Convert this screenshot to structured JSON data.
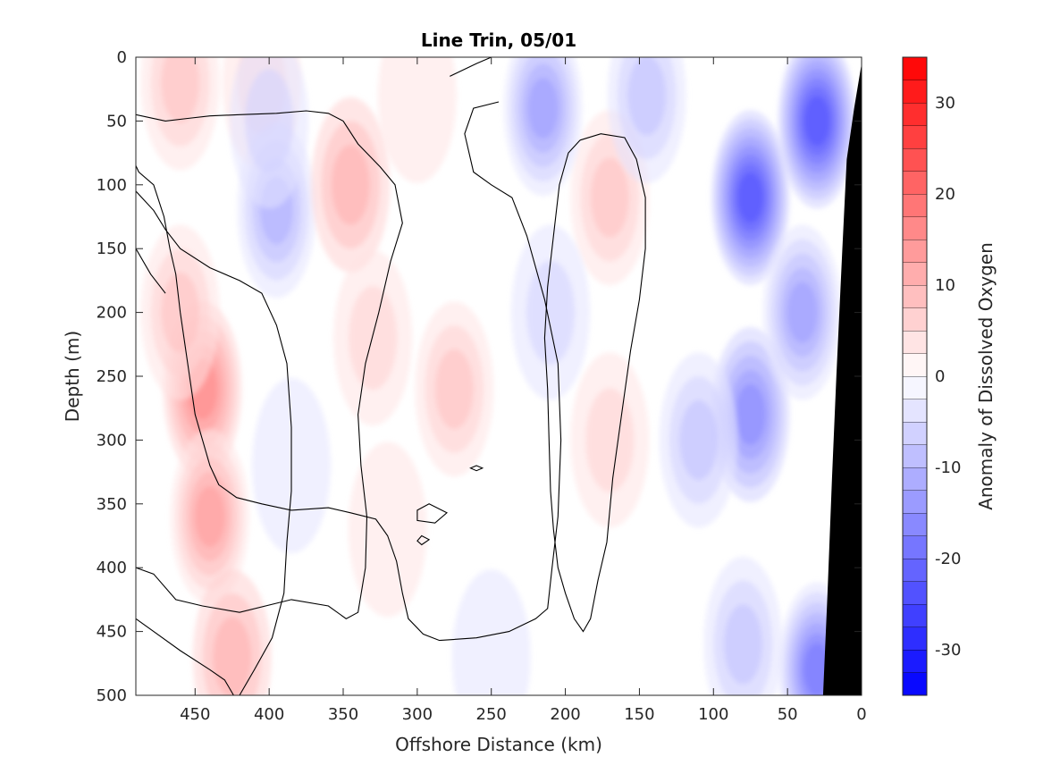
{
  "chart_data": {
    "type": "heatmap",
    "subtype": "filled-contour",
    "title": "Line Trin, 05/01",
    "xlabel": "Offshore Distance (km)",
    "ylabel": "Depth (m)",
    "colorbar_label": "Anomaly of Dissolved Oxygen",
    "xlim": [
      490,
      0
    ],
    "ylim": [
      0,
      500
    ],
    "x_reversed": true,
    "y_reversed": true,
    "x_ticks": [
      450,
      400,
      350,
      300,
      250,
      200,
      150,
      100,
      50,
      0
    ],
    "y_ticks": [
      0,
      50,
      100,
      150,
      200,
      250,
      300,
      350,
      400,
      450,
      500
    ],
    "colorbar_range": [
      -35,
      35
    ],
    "colorbar_ticks": [
      -30,
      -20,
      -10,
      0,
      10,
      20,
      30
    ],
    "colorbar_levels": 28,
    "colormap": "blue-white-red",
    "colors": {
      "negative": "#0000ff",
      "zero": "#ffffff",
      "positive": "#ff0000",
      "bathymetry": "#000000"
    },
    "zero_contour": "black line",
    "anomaly_features": [
      {
        "x": 460,
        "z": 20,
        "value": 8
      },
      {
        "x": 405,
        "z": 20,
        "value": 7
      },
      {
        "x": 445,
        "z": 260,
        "value": 15
      },
      {
        "x": 440,
        "z": 360,
        "value": 14
      },
      {
        "x": 460,
        "z": 200,
        "value": 9
      },
      {
        "x": 425,
        "z": 470,
        "value": 10
      },
      {
        "x": 395,
        "z": 120,
        "value": -12
      },
      {
        "x": 400,
        "z": 50,
        "value": -6
      },
      {
        "x": 385,
        "z": 320,
        "value": -3
      },
      {
        "x": 345,
        "z": 100,
        "value": 10
      },
      {
        "x": 330,
        "z": 220,
        "value": 7
      },
      {
        "x": 275,
        "z": 260,
        "value": 9
      },
      {
        "x": 320,
        "z": 370,
        "value": 4
      },
      {
        "x": 300,
        "z": 30,
        "value": 4
      },
      {
        "x": 170,
        "z": 110,
        "value": 8
      },
      {
        "x": 170,
        "z": 300,
        "value": 5
      },
      {
        "x": 215,
        "z": 40,
        "value": -14
      },
      {
        "x": 210,
        "z": 200,
        "value": -6
      },
      {
        "x": 145,
        "z": 30,
        "value": -10
      },
      {
        "x": 75,
        "z": 110,
        "value": -24
      },
      {
        "x": 75,
        "z": 280,
        "value": -16
      },
      {
        "x": 30,
        "z": 50,
        "value": -25
      },
      {
        "x": 40,
        "z": 200,
        "value": -14
      },
      {
        "x": 30,
        "z": 480,
        "value": -20
      },
      {
        "x": 110,
        "z": 300,
        "value": -8
      },
      {
        "x": 80,
        "z": 460,
        "value": -8
      },
      {
        "x": 250,
        "z": 470,
        "value": -4
      }
    ],
    "bathymetry": [
      {
        "x": 0,
        "z": 5
      },
      {
        "x": 5,
        "z": 40
      },
      {
        "x": 10,
        "z": 80
      },
      {
        "x": 13,
        "z": 150
      },
      {
        "x": 17,
        "z": 250
      },
      {
        "x": 20,
        "z": 330
      },
      {
        "x": 23,
        "z": 420
      },
      {
        "x": 26,
        "z": 500
      }
    ]
  }
}
